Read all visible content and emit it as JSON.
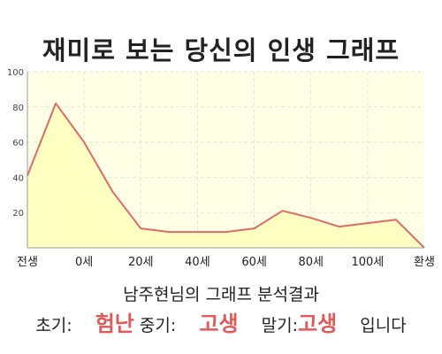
{
  "chart_data": {
    "type": "area",
    "title": "재미로 보는 당신의 인생 그래프",
    "categories": [
      "전생",
      "0세",
      "20세",
      "40세",
      "60세",
      "80세",
      "100세",
      "환생"
    ],
    "x": [
      0,
      1,
      2,
      3,
      4,
      5,
      6,
      7,
      8,
      9,
      10,
      11,
      12,
      13,
      14
    ],
    "values": [
      41,
      82,
      60,
      32,
      11,
      9,
      9,
      9,
      11,
      21,
      17,
      12,
      14,
      16,
      0
    ],
    "yticks": [
      20,
      40,
      60,
      80,
      100
    ],
    "ylim": [
      0,
      100
    ],
    "grid": true,
    "colors": {
      "line": "#e06a6a",
      "fill": "#ffffc2",
      "plot_bg": "#ffffe6",
      "grid": "#e6e6c8"
    }
  },
  "result": {
    "subtitle": "남주현님의 그래프 분석결과",
    "early_label": "초기:",
    "early_value": "험난",
    "mid_label": "중기:",
    "mid_value": "고생",
    "late_label": "말기:",
    "late_value": "고생",
    "ending": "입니다"
  }
}
